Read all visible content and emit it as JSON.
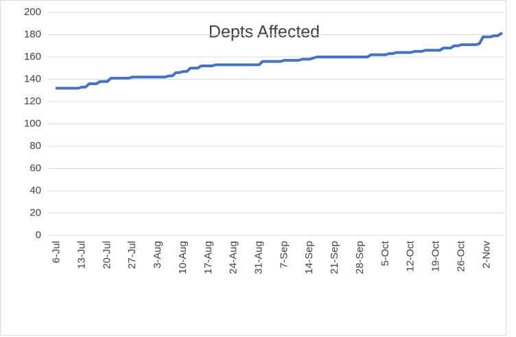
{
  "chart_data": {
    "type": "line",
    "title": "Depts Affected",
    "categories": [
      "6-Jul",
      null,
      null,
      null,
      null,
      null,
      null,
      "13-Jul",
      null,
      null,
      null,
      null,
      null,
      null,
      "20-Jul",
      null,
      null,
      null,
      null,
      null,
      null,
      "27-Jul",
      null,
      null,
      null,
      null,
      null,
      null,
      "3-Aug",
      null,
      null,
      null,
      null,
      null,
      null,
      "10-Aug",
      null,
      null,
      null,
      null,
      null,
      null,
      "17-Aug",
      null,
      null,
      null,
      null,
      null,
      null,
      "24-Aug",
      null,
      null,
      null,
      null,
      null,
      null,
      "31-Aug",
      null,
      null,
      null,
      null,
      null,
      null,
      "7-Sep",
      null,
      null,
      null,
      null,
      null,
      null,
      "14-Sep",
      null,
      null,
      null,
      null,
      null,
      null,
      "21-Sep",
      null,
      null,
      null,
      null,
      null,
      null,
      "28-Sep",
      null,
      null,
      null,
      null,
      null,
      null,
      "5-Oct",
      null,
      null,
      null,
      null,
      null,
      null,
      "12-Oct",
      null,
      null,
      null,
      null,
      null,
      null,
      "19-Oct",
      null,
      null,
      null,
      null,
      null,
      null,
      "26-Oct",
      null,
      null,
      null,
      null,
      null,
      null,
      "2-Nov",
      null,
      null,
      null,
      null
    ],
    "series": [
      {
        "color": "#4472c4",
        "values": [
          132,
          132,
          132,
          132,
          132,
          132,
          132,
          133,
          133,
          136,
          136,
          136,
          138,
          138,
          138,
          141,
          141,
          141,
          141,
          141,
          141,
          142,
          142,
          142,
          142,
          142,
          142,
          142,
          142,
          142,
          142,
          143,
          143,
          146,
          146,
          147,
          147,
          150,
          150,
          150,
          152,
          152,
          152,
          152,
          153,
          153,
          153,
          153,
          153,
          153,
          153,
          153,
          153,
          153,
          153,
          153,
          153,
          156,
          156,
          156,
          156,
          156,
          156,
          157,
          157,
          157,
          157,
          157,
          158,
          158,
          158,
          159,
          160,
          160,
          160,
          160,
          160,
          160,
          160,
          160,
          160,
          160,
          160,
          160,
          160,
          160,
          160,
          162,
          162,
          162,
          162,
          162,
          163,
          163,
          164,
          164,
          164,
          164,
          164,
          165,
          165,
          165,
          166,
          166,
          166,
          166,
          166,
          168,
          168,
          168,
          170,
          170,
          171,
          171,
          171,
          171,
          171,
          172,
          178,
          178,
          178,
          179,
          179,
          181
        ]
      }
    ],
    "ylim": [
      0,
      200
    ],
    "yticks": [
      0,
      20,
      40,
      60,
      80,
      100,
      120,
      140,
      160,
      180,
      200
    ],
    "grid": true
  }
}
